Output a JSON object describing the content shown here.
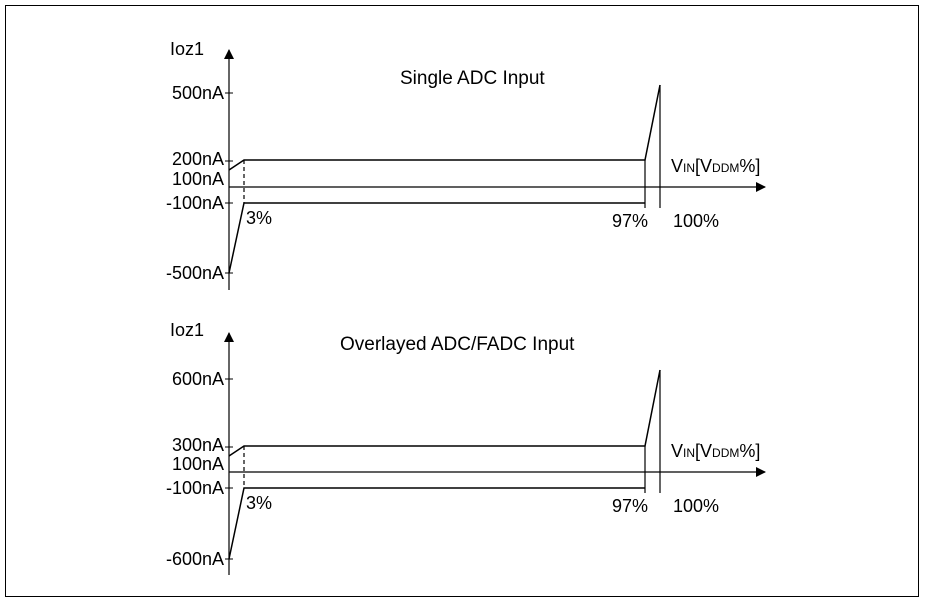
{
  "diagrams": [
    {
      "title": "Single ADC Input",
      "y_axis_label": "Ioz1",
      "y_ticks": [
        "500nA",
        "200nA",
        "100nA",
        "-100nA",
        "-500nA"
      ],
      "x_axis_label": {
        "v": "V",
        "in": "IN",
        "open": "[V",
        "ddm": "DDM",
        "close": "%]"
      },
      "x_ticks": [
        "3%",
        "97%",
        "100%"
      ]
    },
    {
      "title": "Overlayed ADC/FADC Input",
      "y_axis_label": "Ioz1",
      "y_ticks": [
        "600nA",
        "300nA",
        "100nA",
        "-100nA",
        "-600nA"
      ],
      "x_axis_label": {
        "v": "V",
        "in": "IN",
        "open": "[V",
        "ddm": "DDM",
        "close": "%]"
      },
      "x_ticks": [
        "3%",
        "97%",
        "100%"
      ]
    }
  ]
}
